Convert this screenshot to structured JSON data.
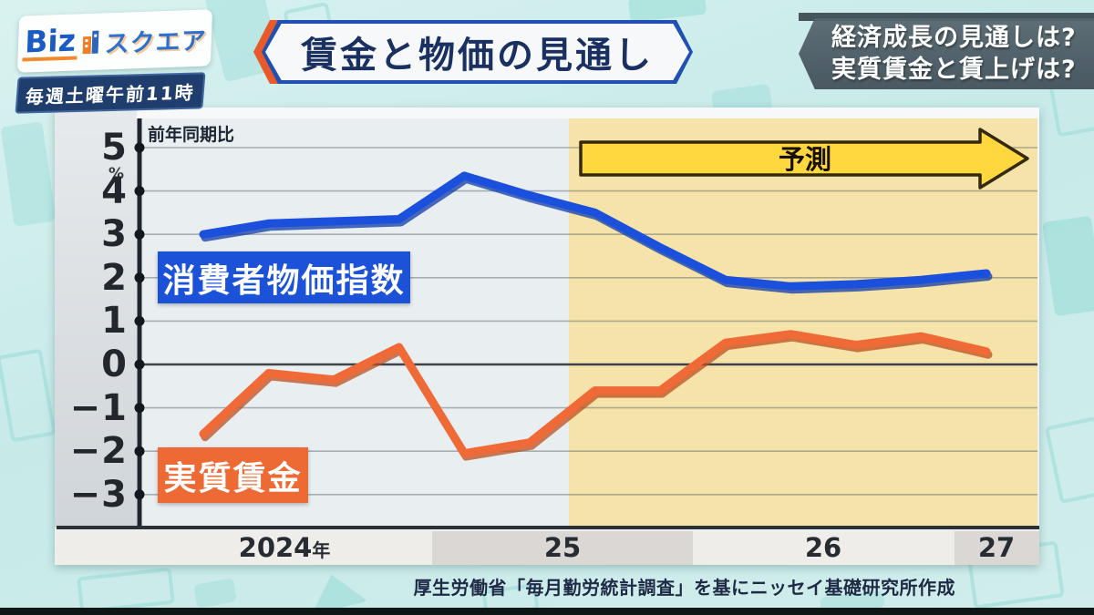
{
  "branding": {
    "logo_biz": "Biz",
    "logo_square": "スクエア",
    "schedule": "毎週土曜午前11時"
  },
  "header": {
    "title": "賃金と物価の見通し",
    "topics": [
      "経済成長の見通しは?",
      "実質賃金と賃上げは?"
    ]
  },
  "chart_data": {
    "type": "line",
    "title": "賃金と物価の見通し",
    "y_axis": {
      "label": "前年同期比",
      "unit": "%",
      "ticks": [
        5,
        4,
        3,
        2,
        1,
        0,
        -1,
        -2,
        -3
      ],
      "range_shown": [
        -3.8,
        5.7
      ]
    },
    "x_axis": {
      "year_labels": [
        "2024年",
        "25",
        "26",
        "27"
      ],
      "granularity": "quarterly",
      "band_colors": [
        "#efedea",
        "#dad7d4"
      ]
    },
    "grid": true,
    "legend": "inline-labels",
    "forecast": {
      "label": "予測",
      "start_x": 2025.4,
      "band_color": "#f5e3aa",
      "arrow_color": "#ffd840"
    },
    "x": [
      2024.0,
      2024.25,
      2024.5,
      2024.75,
      2025.0,
      2025.25,
      2025.5,
      2025.75,
      2026.0,
      2026.25,
      2026.5,
      2026.75,
      2027.0
    ],
    "series": [
      {
        "name": "消費者物価指数",
        "color": "#1b50dc",
        "values": [
          3.0,
          3.25,
          3.3,
          3.35,
          4.35,
          3.9,
          3.5,
          2.7,
          1.95,
          1.8,
          1.85,
          1.95,
          2.1
        ]
      },
      {
        "name": "実質賃金",
        "color": "#f06a38",
        "values": [
          -1.6,
          -0.2,
          -0.35,
          0.4,
          -2.05,
          -1.8,
          -0.6,
          -0.6,
          0.5,
          0.7,
          0.45,
          0.65,
          0.3
        ]
      }
    ],
    "source_note": "厚生労働省「毎月勤労統計調査」を基にニッセイ基礎研究所作成"
  }
}
